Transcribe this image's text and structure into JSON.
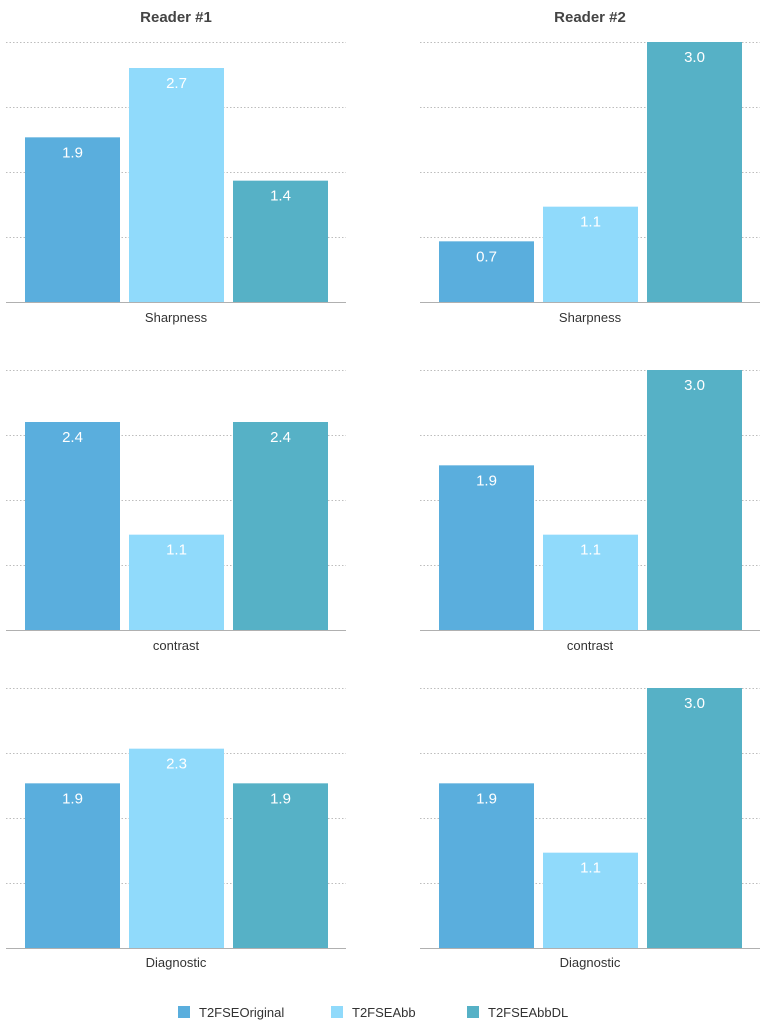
{
  "chart_data": {
    "type": "bar",
    "series": [
      {
        "name": "T2FSEOriginal",
        "color": "#5aaedd"
      },
      {
        "name": "T2FSEAbb",
        "color": "#90dafb"
      },
      {
        "name": "T2FSEAbbDL",
        "color": "#56b1c6"
      }
    ],
    "ylim": [
      0,
      3
    ],
    "grid": true,
    "legend_position": "bottom",
    "columns": [
      {
        "title": "Reader #1",
        "panels": [
          {
            "category": "Sharpness",
            "values": [
              1.9,
              2.7,
              1.4
            ],
            "labels": [
              "1.9",
              "2.7",
              "1.4"
            ]
          },
          {
            "category": "contrast",
            "values": [
              2.4,
              1.1,
              2.4
            ],
            "labels": [
              "2.4",
              "1.1",
              "2.4"
            ]
          },
          {
            "category": "Diagnostic",
            "values": [
              1.9,
              2.3,
              1.9
            ],
            "labels": [
              "1.9",
              "2.3",
              "1.9"
            ]
          }
        ]
      },
      {
        "title": "Reader #2",
        "panels": [
          {
            "category": "Sharpness",
            "values": [
              0.7,
              1.1,
              3.0
            ],
            "labels": [
              "0.7",
              "1.1",
              "3.0"
            ]
          },
          {
            "category": "contrast",
            "values": [
              1.9,
              1.1,
              3.0
            ],
            "labels": [
              "1.9",
              "1.1",
              "3.0"
            ]
          },
          {
            "category": "Diagnostic",
            "values": [
              1.9,
              1.1,
              3.0
            ],
            "labels": [
              "1.9",
              "1.1",
              "3.0"
            ]
          }
        ]
      }
    ]
  }
}
